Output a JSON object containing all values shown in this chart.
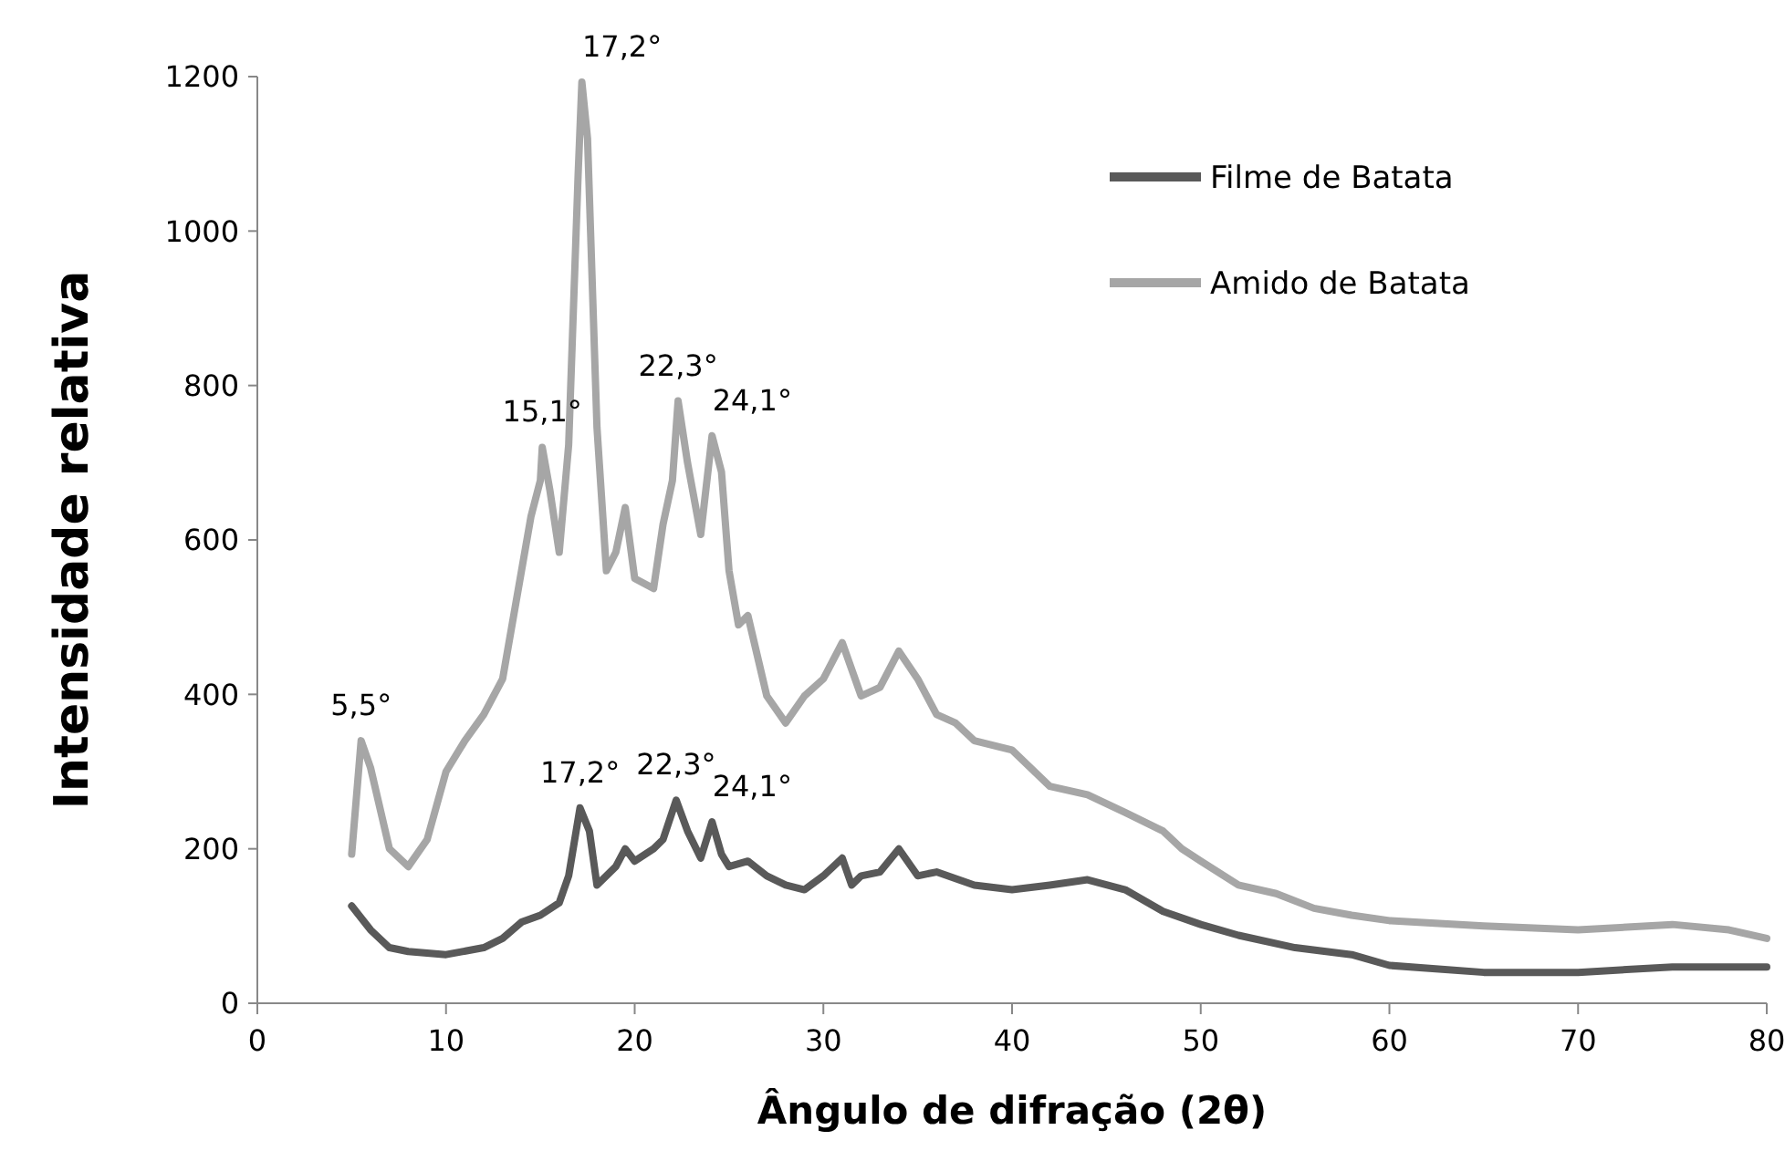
{
  "chart_data": {
    "type": "line",
    "xlabel": "Ângulo de difração (2θ)",
    "ylabel": "Intensidade relativa",
    "xlim": [
      0,
      80
    ],
    "ylim": [
      0,
      1200
    ],
    "xticks": [
      0,
      10,
      20,
      30,
      40,
      50,
      60,
      70,
      80
    ],
    "yticks": [
      0,
      200,
      400,
      600,
      800,
      1000,
      1200
    ],
    "grid": false,
    "legend": "top right",
    "marker": "none",
    "line_style": "solid",
    "series": [
      {
        "name": "Filme de Batata",
        "color": "#595959",
        "x": [
          5,
          6,
          7,
          8,
          10,
          12,
          13,
          14,
          15,
          16,
          16.5,
          17.1,
          17.6,
          18,
          19,
          19.5,
          20,
          21,
          21.5,
          22.2,
          22.8,
          23.5,
          24.1,
          24.6,
          25,
          26,
          27,
          28,
          29,
          30,
          31,
          31.5,
          32,
          33,
          34,
          35,
          36,
          38,
          40,
          42,
          44,
          46,
          48,
          50,
          52,
          55,
          58,
          60,
          65,
          70,
          75,
          80
        ],
        "values": [
          126,
          95,
          72,
          67,
          63,
          72,
          84,
          105,
          114,
          130,
          165,
          253,
          223,
          153,
          177,
          200,
          184,
          200,
          212,
          263,
          223,
          188,
          235,
          193,
          177,
          184,
          165,
          153,
          147,
          165,
          188,
          153,
          165,
          170,
          200,
          165,
          170,
          153,
          147,
          153,
          160,
          147,
          119,
          102,
          88,
          72,
          63,
          49,
          40,
          40,
          47,
          47
        ]
      },
      {
        "name": "Amido de Batata",
        "color": "#a6a6a6",
        "x": [
          5,
          5.5,
          6,
          7,
          8,
          9,
          10,
          11,
          12,
          13,
          14,
          14.5,
          15,
          15.1,
          15.5,
          16,
          16.5,
          17,
          17.2,
          17.5,
          18,
          18.5,
          19,
          19.5,
          20,
          21,
          21.5,
          22,
          22.3,
          22.8,
          23.5,
          24.1,
          24.6,
          25,
          25.5,
          26,
          27,
          28,
          29,
          30,
          31,
          32,
          33,
          34,
          35,
          36,
          37,
          38,
          40,
          42,
          44,
          46,
          48,
          49,
          50,
          52,
          54,
          56,
          58,
          60,
          65,
          70,
          75,
          78,
          80
        ],
        "values": [
          193,
          340,
          305,
          200,
          177,
          212,
          300,
          340,
          374,
          420,
          560,
          630,
          677,
          720,
          665,
          584,
          723,
          1072,
          1193,
          1120,
          746,
          560,
          584,
          642,
          550,
          537,
          620,
          677,
          780,
          700,
          607,
          735,
          688,
          560,
          490,
          502,
          398,
          363,
          398,
          420,
          467,
          398,
          409,
          456,
          420,
          374,
          363,
          340,
          328,
          281,
          270,
          247,
          223,
          200,
          184,
          153,
          142,
          123,
          114,
          107,
          100,
          95,
          102,
          95,
          84
        ]
      }
    ],
    "annotations": [
      {
        "text": "5,5°",
        "x": 5.5,
        "y": 340
      },
      {
        "text": "15,1°",
        "x": 15.1,
        "y": 720
      },
      {
        "text": "17,2°",
        "x": 17.2,
        "y": 1193
      },
      {
        "text": "22,3°",
        "x": 22.3,
        "y": 780
      },
      {
        "text": "24,1°",
        "x": 24.1,
        "y": 735
      },
      {
        "text": "17,2°",
        "x": 17.1,
        "y": 253
      },
      {
        "text": "22,3°",
        "x": 22.2,
        "y": 263
      },
      {
        "text": "24,1°",
        "x": 24.1,
        "y": 235
      }
    ]
  }
}
